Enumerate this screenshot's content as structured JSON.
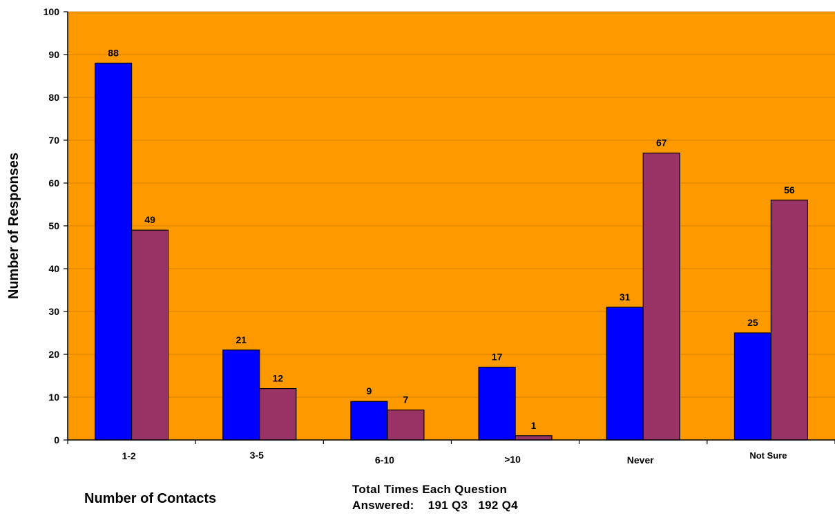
{
  "chart_data": {
    "type": "bar",
    "categories": [
      "1-2",
      "3-5",
      "6-10",
      ">10",
      "Never",
      "Not Sure"
    ],
    "series": [
      {
        "values": [
          88,
          21,
          9,
          17,
          31,
          25
        ]
      },
      {
        "values": [
          49,
          12,
          7,
          1,
          67,
          56
        ]
      }
    ],
    "ylabel": "Number of Responses",
    "ylim": [
      0,
      100
    ],
    "yticks": [
      0,
      10,
      20,
      30,
      40,
      50,
      60,
      70,
      80,
      90,
      100
    ],
    "grid": true,
    "legend": "none",
    "data_labels": true
  },
  "colors": {
    "plot_background": "#FF9900",
    "gridline": "#CC7A00",
    "series_1": "#0000FF",
    "series_2": "#993366"
  },
  "notes": {
    "contacts": "Number of Contacts",
    "total_line1": "Total Times Each Question",
    "total_line2": "Answered:    191 Q3   192 Q4"
  }
}
